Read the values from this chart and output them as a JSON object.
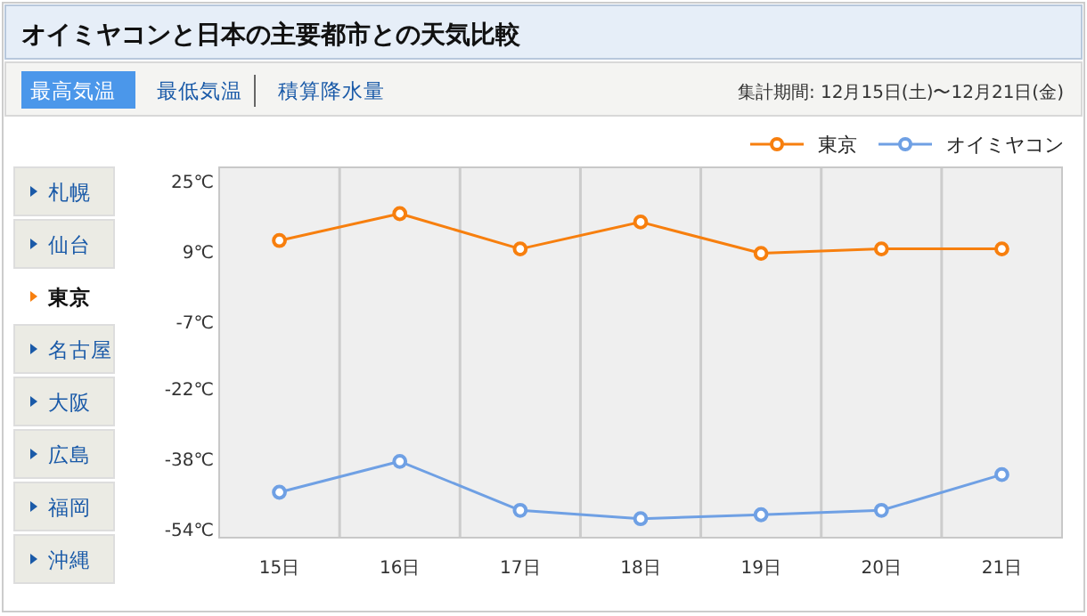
{
  "chart_data": {
    "type": "line",
    "title": "オイミヤコンと日本の主要都市との天気比較",
    "categories": [
      "15日",
      "16日",
      "17日",
      "18日",
      "19日",
      "20日",
      "21日"
    ],
    "series": [
      {
        "name": "東京",
        "color": "#f77f0e",
        "values": [
          11.4,
          17.5,
          9.5,
          15.6,
          8.5,
          9.5,
          9.5
        ]
      },
      {
        "name": "オイミヤコン",
        "color": "#6fa0e4",
        "values": [
          -45.7,
          -38.7,
          -49.8,
          -51.7,
          -50.8,
          -49.8,
          -41.7
        ]
      }
    ],
    "ylim": [
      -56,
      28
    ],
    "yticks": [
      {
        "value": 25,
        "label": "25℃"
      },
      {
        "value": 9,
        "label": "9℃"
      },
      {
        "value": -7,
        "label": "-7℃"
      },
      {
        "value": -22,
        "label": "-22℃"
      },
      {
        "value": -38,
        "label": "-38℃"
      },
      {
        "value": -54,
        "label": "-54℃"
      }
    ],
    "grid": "x",
    "legend": "top right",
    "marker": "circle",
    "line_style": "solid",
    "annotations": [
      "最高気温",
      "最低気温",
      "積算降水量",
      "集計期間: 12月15日(土)〜12月21日(金)",
      "札幌",
      "仙台",
      "東京",
      "名古屋",
      "大阪",
      "広島",
      "福岡",
      "沖縄"
    ]
  }
}
